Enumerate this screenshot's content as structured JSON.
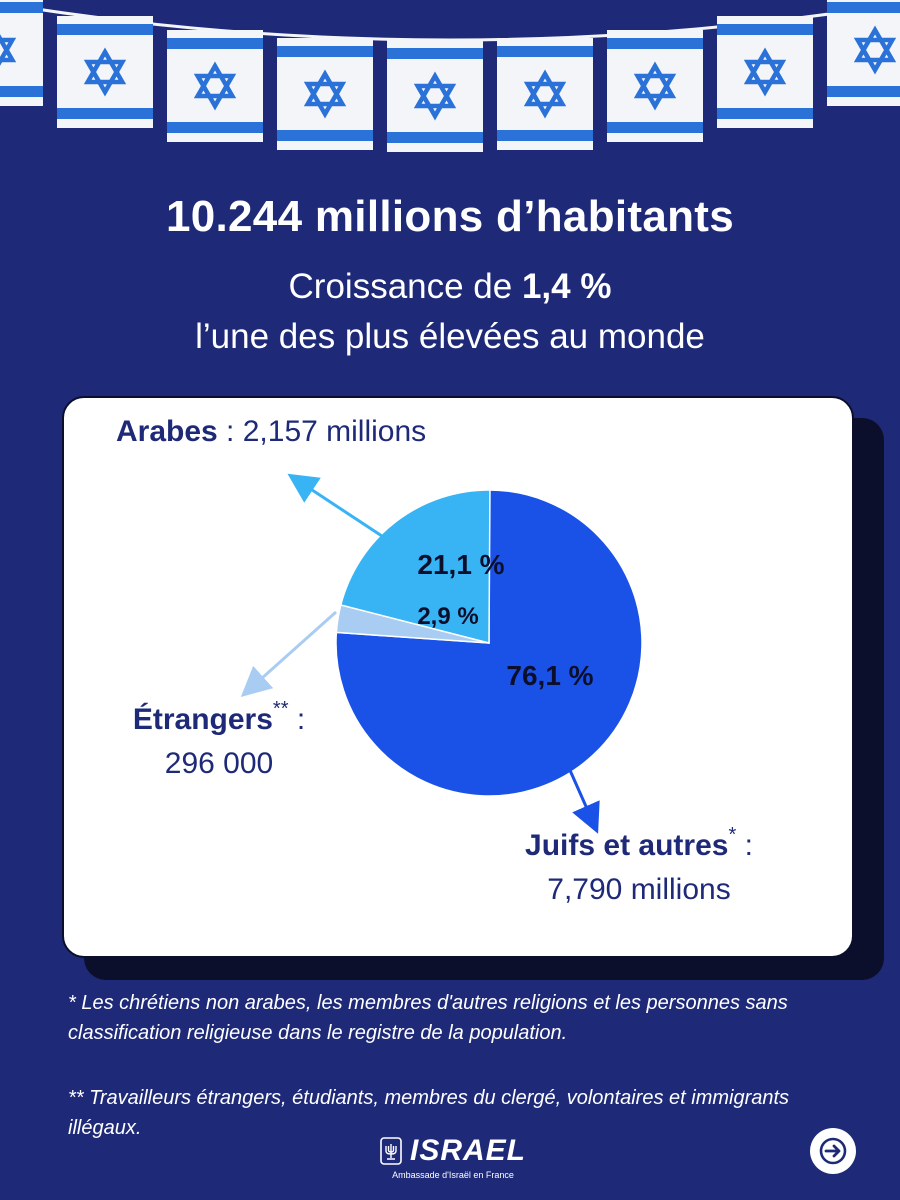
{
  "headline": "10.244 millions d’habitants",
  "subline": {
    "prefix": "Croissance de ",
    "value": "1,4 %",
    "line2": "l’une des plus élevées au monde"
  },
  "colors": {
    "background": "#1e2a78",
    "juifs": "#1a52e8",
    "arabes": "#38b4f5",
    "etrangers": "#a9cdf2",
    "label_text": "#1e2a78"
  },
  "chart_data": {
    "type": "pie",
    "slices": [
      {
        "label": "Juifs et autres",
        "pct": 76.1,
        "pct_label": "76,1 %",
        "value_label": "7,790 millions"
      },
      {
        "label": "Étrangers",
        "pct": 2.9,
        "pct_label": "2,9 %",
        "value_label": "296 000"
      },
      {
        "label": "Arabes",
        "pct": 21.1,
        "pct_label": "21,1 %",
        "value_label": "2,157 millions"
      }
    ]
  },
  "labels": {
    "arabes": {
      "name": "Arabes",
      "sep": " : ",
      "value": "2,157 millions"
    },
    "etrangers": {
      "name": "Étrangers",
      "mark": "**",
      "sep": " :",
      "value": "296 000"
    },
    "juifs": {
      "name": "Juifs et autres",
      "mark": "*",
      "sep": " :",
      "value": "7,790 millions"
    }
  },
  "footnotes": {
    "one": "* Les chrétiens non arabes, les membres d'autres religions et les personnes sans classification religieuse dans le registre de la population.",
    "two": "** Travailleurs étrangers, étudiants, membres du clergé, volontaires et immigrants illégaux."
  },
  "logo": {
    "word": "ISRAEL",
    "sub": "Ambassade d'Israël en France",
    "icon": "menorah-emblem-icon"
  },
  "next_icon": "arrow-right-icon"
}
